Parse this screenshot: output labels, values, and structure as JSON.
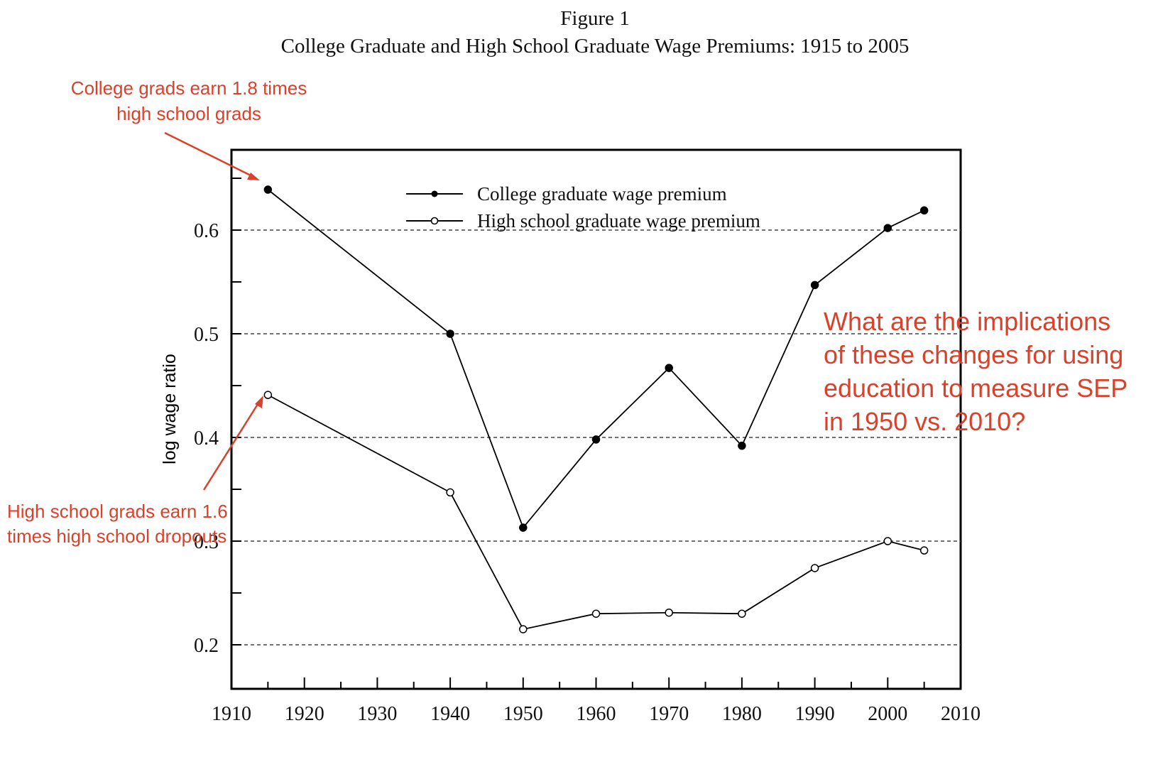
{
  "figure_label": "Figure 1",
  "chart_data": {
    "type": "line",
    "title": "College Graduate and High School Graduate Wage Premiums: 1915 to 2005",
    "xlabel": "",
    "ylabel": "log wage ratio",
    "xlim": [
      1910,
      2010
    ],
    "ylim": [
      0.16,
      0.66
    ],
    "xticks": [
      1910,
      1920,
      1930,
      1940,
      1950,
      1960,
      1970,
      1980,
      1990,
      2000,
      2010
    ],
    "yticks_labeled": [
      0.2,
      0.3,
      0.4,
      0.5,
      0.6
    ],
    "ytick_labels": [
      "0.2",
      "0.3",
      "0.4",
      "0.5",
      "0.6"
    ],
    "grid": "dashed horizontal at labeled y ticks",
    "legend_position": "top-center",
    "series": [
      {
        "name": "College graduate wage premium",
        "marker": "filled-circle",
        "x": [
          1915,
          1940,
          1950,
          1960,
          1970,
          1980,
          1990,
          2000,
          2005
        ],
        "y": [
          0.639,
          0.5,
          0.313,
          0.398,
          0.467,
          0.392,
          0.547,
          0.602,
          0.619
        ]
      },
      {
        "name": "High school graduate wage premium",
        "marker": "open-circle",
        "x": [
          1915,
          1940,
          1950,
          1960,
          1970,
          1980,
          1990,
          2000,
          2005
        ],
        "y": [
          0.441,
          0.347,
          0.215,
          0.23,
          0.231,
          0.23,
          0.274,
          0.3,
          0.291
        ]
      }
    ]
  },
  "annotations": {
    "college_note_line1": "College grads earn 1.8 times",
    "college_note_line2": "high school grads",
    "hs_note_line1": "High school grads earn 1.6",
    "hs_note_line2": "times high school dropouts",
    "question_line1": "What are the implications",
    "question_line2": "of these changes for using",
    "question_line3": "education to measure SEP",
    "question_line4": "in 1950 vs. 2010?",
    "color": "#d9412b"
  }
}
